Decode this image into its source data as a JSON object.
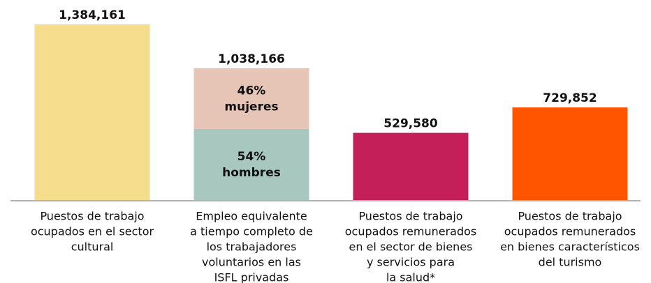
{
  "chart_data": {
    "type": "bar",
    "categories": [
      [
        "Puestos de trabajo",
        "ocupados en el sector",
        "cultural"
      ],
      [
        "Empleo equivalente",
        "a tiempo completo de",
        "los trabajadores",
        "voluntarios en las",
        "ISFL privadas"
      ],
      [
        "Puestos de trabajo",
        "ocupados remunerados",
        "en el sector de bienes",
        "y servicios para",
        "la salud*"
      ],
      [
        "Puestos de trabajo",
        "ocupados remunerados",
        "en bienes característicos",
        "del turismo"
      ]
    ],
    "values": [
      1384161,
      1038166,
      529580,
      729852
    ],
    "value_labels": [
      "1,384,161",
      "1,038,166",
      "529,580",
      "729,852"
    ],
    "colors": [
      "#f6dc8d",
      null,
      "#c41f58",
      "#ff5400"
    ],
    "segments": {
      "1": [
        {
          "name": "hombres",
          "value": 54,
          "label": "54%",
          "color": "#a8c7bf"
        },
        {
          "name": "mujeres",
          "value": 46,
          "label": "46%",
          "color": "#e6c5b7"
        }
      ]
    },
    "ylim": [
      0,
      1384161
    ]
  }
}
